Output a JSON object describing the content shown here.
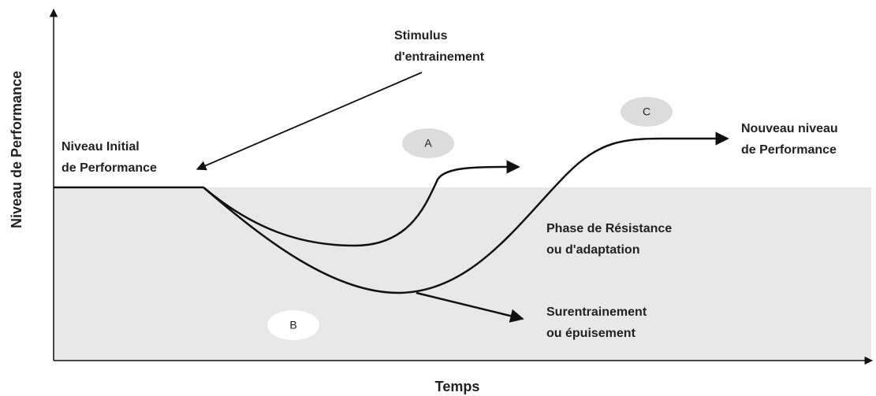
{
  "axes": {
    "y_label": "Niveau de Performance",
    "x_label": "Temps"
  },
  "labels": {
    "stimulus": [
      "Stimulus",
      "d'entrainement"
    ],
    "initial": [
      "Niveau Initial",
      "de Performance"
    ],
    "nouveau": [
      "Nouveau niveau",
      "de Performance"
    ],
    "resistance": [
      "Phase de Résistance",
      "ou d'adaptation"
    ],
    "surentrainement": [
      "Surentrainement",
      "ou épuisement"
    ]
  },
  "markers": [
    "A",
    "B",
    "C"
  ]
}
